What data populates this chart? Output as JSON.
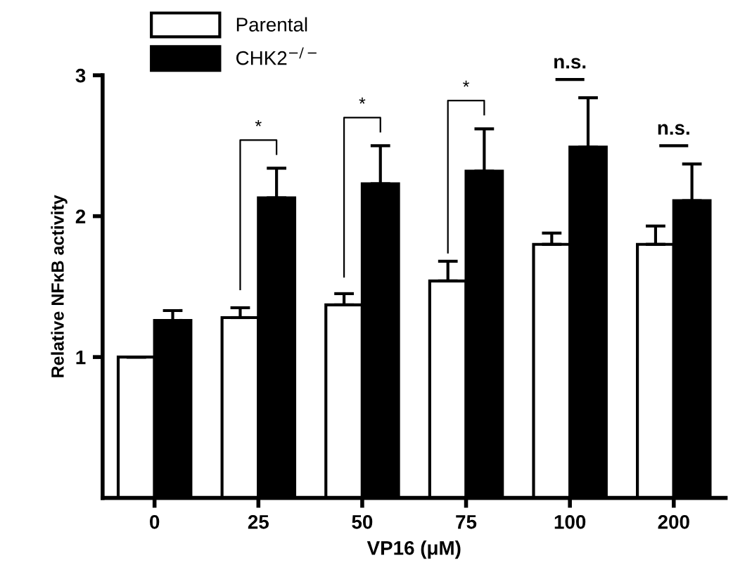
{
  "chart_data": {
    "type": "bar",
    "xlabel": "VP16 (μM)",
    "ylabel": "Relative NFκB activity",
    "categories": [
      "0",
      "25",
      "50",
      "75",
      "100",
      "200"
    ],
    "series": [
      {
        "name": "Parental",
        "color": "#ffffff",
        "values": [
          1.0,
          1.28,
          1.37,
          1.54,
          1.8,
          1.8
        ],
        "errors": [
          null,
          0.07,
          0.08,
          0.14,
          0.08,
          0.13
        ]
      },
      {
        "name": "CHK2$^{−/−}$",
        "color": "#000000",
        "values": [
          1.26,
          2.13,
          2.23,
          2.32,
          2.49,
          2.11
        ],
        "errors": [
          0.07,
          0.21,
          0.27,
          0.3,
          0.35,
          0.26
        ]
      }
    ],
    "annotations": [
      "*",
      "*",
      "*",
      "n.s.",
      "n.s."
    ],
    "ylim": [
      0,
      3
    ],
    "yticks": [
      1,
      2,
      3
    ],
    "grid": false,
    "legend": "top left"
  }
}
